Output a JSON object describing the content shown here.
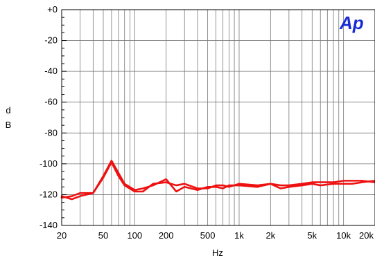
{
  "logo": {
    "text": "Ap",
    "color": "#1a2bd6"
  },
  "chart_data": {
    "type": "line",
    "title": "",
    "xlabel": "Hz",
    "ylabel": "d\nB",
    "x_scale": "log",
    "xlim": [
      20,
      20000
    ],
    "ylim": [
      -140,
      0
    ],
    "grid": true,
    "x_ticks": [
      {
        "value": 20,
        "label": "20"
      },
      {
        "value": 50,
        "label": "50"
      },
      {
        "value": 100,
        "label": "100"
      },
      {
        "value": 200,
        "label": "200"
      },
      {
        "value": 500,
        "label": "500"
      },
      {
        "value": 1000,
        "label": "1k"
      },
      {
        "value": 2000,
        "label": "2k"
      },
      {
        "value": 5000,
        "label": "5k"
      },
      {
        "value": 10000,
        "label": "10k"
      },
      {
        "value": 20000,
        "label": "20k"
      }
    ],
    "y_ticks": [
      {
        "value": 0,
        "label": "+0"
      },
      {
        "value": -20,
        "label": "-20"
      },
      {
        "value": -40,
        "label": "-40"
      },
      {
        "value": -60,
        "label": "-60"
      },
      {
        "value": -80,
        "label": "-80"
      },
      {
        "value": -100,
        "label": "-100"
      },
      {
        "value": -120,
        "label": "-120"
      },
      {
        "value": -140,
        "label": "-140"
      }
    ],
    "series_color": "#ee1111",
    "series": [
      {
        "x": [
          20,
          25,
          30,
          40,
          50,
          60,
          70,
          80,
          100,
          120,
          150,
          200,
          250,
          300,
          400,
          500,
          600,
          700,
          800,
          1000,
          1500,
          2000,
          2500,
          3000,
          4000,
          5000,
          6000,
          8000,
          10000,
          12000,
          15000,
          20000
        ],
        "y": [
          -122,
          -121,
          -119,
          -119,
          -108,
          -98,
          -106,
          -113,
          -117,
          -116,
          -114,
          -110,
          -118,
          -115,
          -117,
          -115,
          -115,
          -116,
          -114,
          -114,
          -115,
          -113,
          -116,
          -115,
          -114,
          -113,
          -114,
          -113,
          -113,
          -113,
          -112,
          -111
        ]
      },
      {
        "x": [
          20,
          25,
          30,
          40,
          50,
          60,
          70,
          80,
          100,
          120,
          150,
          200,
          250,
          300,
          400,
          500,
          600,
          700,
          800,
          1000,
          1500,
          2000,
          2500,
          3000,
          4000,
          5000,
          6000,
          8000,
          10000,
          12000,
          15000,
          20000
        ],
        "y": [
          -121,
          -123,
          -121,
          -119,
          -109,
          -99,
          -108,
          -114,
          -118,
          -118,
          -113,
          -112,
          -114,
          -113,
          -116,
          -116,
          -114,
          -114,
          -115,
          -113,
          -114,
          -113,
          -114,
          -114,
          -113,
          -112,
          -112,
          -112,
          -111,
          -111,
          -111,
          -112
        ]
      }
    ]
  }
}
